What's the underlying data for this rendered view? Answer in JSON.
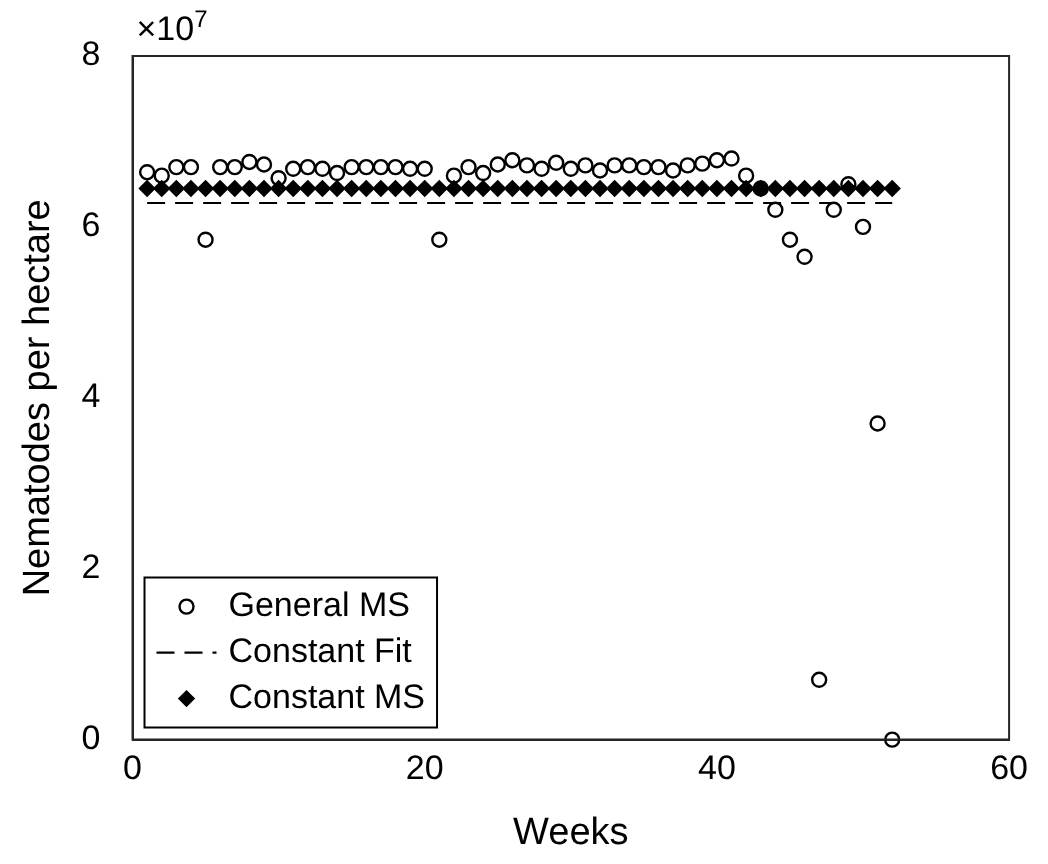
{
  "chart_data": {
    "type": "scatter",
    "xlabel": "Weeks",
    "ylabel": "Nematodes per hectare",
    "annotations": [
      "×10$^{7}$"
    ],
    "xlim": [
      0,
      60
    ],
    "xticks": [
      0,
      20,
      40,
      60
    ],
    "ylim": [
      0,
      8
    ],
    "yticks": [
      0,
      2,
      4,
      6,
      8
    ],
    "grid": false,
    "legend": "bottom left",
    "series": [
      {
        "name": "General MS",
        "marker": "circle",
        "color": "#000000",
        "x": [
          1,
          2,
          3,
          4,
          5,
          6,
          7,
          8,
          9,
          10,
          11,
          12,
          13,
          14,
          15,
          16,
          17,
          18,
          19,
          20,
          21,
          22,
          23,
          24,
          25,
          26,
          27,
          28,
          29,
          30,
          31,
          32,
          33,
          34,
          35,
          36,
          37,
          38,
          39,
          40,
          41,
          42,
          43,
          44,
          45,
          46,
          47,
          48,
          49,
          50,
          51,
          52
        ],
        "values": [
          6.64,
          6.6,
          6.7,
          6.7,
          5.85,
          6.7,
          6.7,
          6.76,
          6.73,
          6.57,
          6.68,
          6.7,
          6.68,
          6.63,
          6.7,
          6.7,
          6.7,
          6.7,
          6.68,
          6.68,
          5.85,
          6.6,
          6.7,
          6.63,
          6.73,
          6.78,
          6.72,
          6.68,
          6.75,
          6.68,
          6.72,
          6.66,
          6.72,
          6.72,
          6.7,
          6.7,
          6.66,
          6.72,
          6.74,
          6.78,
          6.8,
          6.6,
          6.45,
          6.2,
          5.85,
          5.65,
          0.7,
          6.2,
          6.5,
          6.0,
          3.7,
          0
        ]
      },
      {
        "name": "Constant Fit",
        "type": "line",
        "marker": "none",
        "line_style": "dashed",
        "color": "#000000",
        "x": [
          1,
          52
        ],
        "values": [
          6.28,
          6.28
        ]
      },
      {
        "name": "Constant MS",
        "marker": "diamond",
        "color": "#000000",
        "x": [
          1,
          2,
          3,
          4,
          5,
          6,
          7,
          8,
          9,
          10,
          11,
          12,
          13,
          14,
          15,
          16,
          17,
          18,
          19,
          20,
          21,
          22,
          23,
          24,
          25,
          26,
          27,
          28,
          29,
          30,
          31,
          32,
          33,
          34,
          35,
          36,
          37,
          38,
          39,
          40,
          41,
          42,
          43,
          44,
          45,
          46,
          47,
          48,
          49,
          50,
          51,
          52
        ],
        "values": [
          6.45,
          6.45,
          6.45,
          6.45,
          6.45,
          6.45,
          6.45,
          6.45,
          6.45,
          6.45,
          6.45,
          6.45,
          6.45,
          6.45,
          6.45,
          6.45,
          6.45,
          6.45,
          6.45,
          6.45,
          6.45,
          6.45,
          6.45,
          6.45,
          6.45,
          6.45,
          6.45,
          6.45,
          6.45,
          6.45,
          6.45,
          6.45,
          6.45,
          6.45,
          6.45,
          6.45,
          6.45,
          6.45,
          6.45,
          6.45,
          6.45,
          6.45,
          6.45,
          6.45,
          6.45,
          6.45,
          6.45,
          6.45,
          6.45,
          6.45,
          6.45,
          6.45
        ]
      }
    ]
  }
}
